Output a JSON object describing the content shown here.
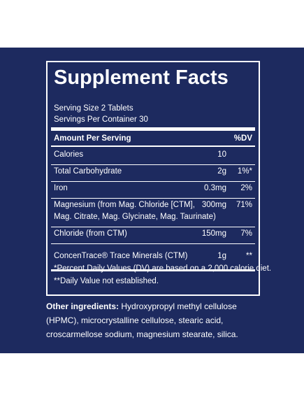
{
  "label": {
    "title": "Supplement Facts",
    "serving_size": "Serving Size 2 Tablets",
    "servings_per_container": "Servings Per Container 30",
    "header": {
      "name": "Amount Per Serving",
      "dv": "%DV"
    },
    "rows": [
      {
        "name": [
          "Calories"
        ],
        "amount": "10"
      },
      {
        "name": [
          "Total Carbohydrate"
        ],
        "amount": "2g",
        "dv": "1%*"
      },
      {
        "name": [
          "Iron"
        ],
        "amount": "0.3mg",
        "dv": "2%"
      },
      {
        "name": [
          "Magnesium (from Mag. Chloride [CTM],",
          "Mag. Citrate, Mag. Glycinate, Mag. Taurinate)"
        ],
        "amount": "300mg",
        "dv": "71%"
      },
      {
        "name": [
          "Chloride (from CTM)"
        ],
        "amount": "150mg",
        "dv": "7%"
      },
      {
        "name": [
          "ConcenTrace® Trace Minerals (CTM)"
        ],
        "amount": "1g",
        "dv": "**"
      }
    ],
    "footnotes": [
      "*Percent Daily Values (DV) are based on a 2,000 calorie diet.",
      "**Daily Value not established."
    ]
  },
  "other_ingredients": {
    "label": "Other ingredients:",
    "text": "Hydroxypropyl methyl cellulose (HPMC), microcrystalline cellulose, stearic acid, croscarmellose sodium, magnesium stearate, silica."
  }
}
